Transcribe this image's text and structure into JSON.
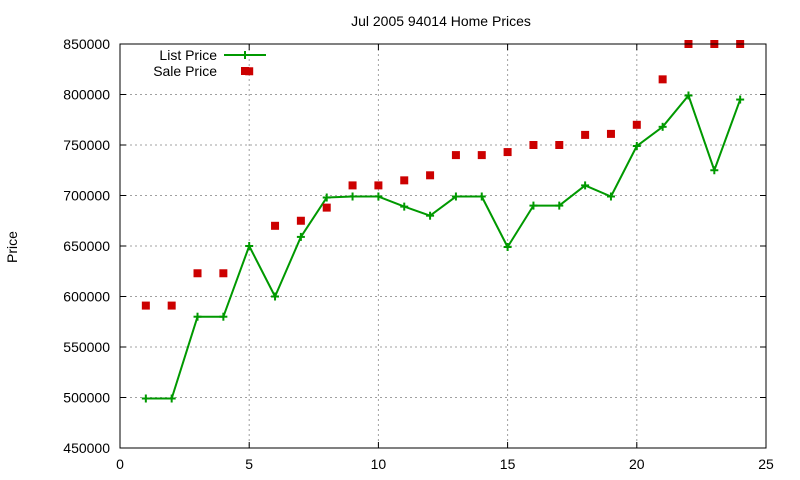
{
  "chart_data": {
    "type": "line",
    "title": "Jul 2005 94014 Home Prices",
    "xlabel": "",
    "ylabel": "Price",
    "xlim": [
      0,
      25
    ],
    "ylim": [
      450000,
      850000
    ],
    "x_ticks": [
      0,
      5,
      10,
      15,
      20,
      25
    ],
    "y_ticks": [
      450000,
      500000,
      550000,
      600000,
      650000,
      700000,
      750000,
      800000,
      850000
    ],
    "grid": true,
    "legend_position": "top-left",
    "series": [
      {
        "name": "List Price",
        "style": "line-with-plus-markers",
        "color": "#009900",
        "x": [
          1,
          2,
          3,
          4,
          5,
          6,
          7,
          8,
          9,
          10,
          11,
          12,
          13,
          14,
          15,
          16,
          17,
          18,
          19,
          20,
          21,
          22,
          23,
          24
        ],
        "y": [
          499000,
          499000,
          580000,
          580000,
          650000,
          600000,
          659000,
          698000,
          699000,
          699000,
          689000,
          680000,
          699000,
          699000,
          649000,
          690000,
          690000,
          710000,
          699000,
          749000,
          768000,
          799000,
          725000,
          795000
        ]
      },
      {
        "name": "Sale Price",
        "style": "square-markers",
        "color": "#cc0000",
        "x": [
          1,
          2,
          3,
          4,
          5,
          6,
          7,
          8,
          9,
          10,
          11,
          12,
          13,
          14,
          15,
          16,
          17,
          18,
          19,
          20,
          21,
          22,
          23,
          24
        ],
        "y": [
          591000,
          591000,
          623000,
          623000,
          823000,
          670000,
          675000,
          688000,
          710000,
          710000,
          715000,
          720000,
          740000,
          740000,
          743000,
          750000,
          750000,
          760000,
          761000,
          770000,
          815000,
          850000,
          850000,
          850000
        ]
      }
    ]
  }
}
